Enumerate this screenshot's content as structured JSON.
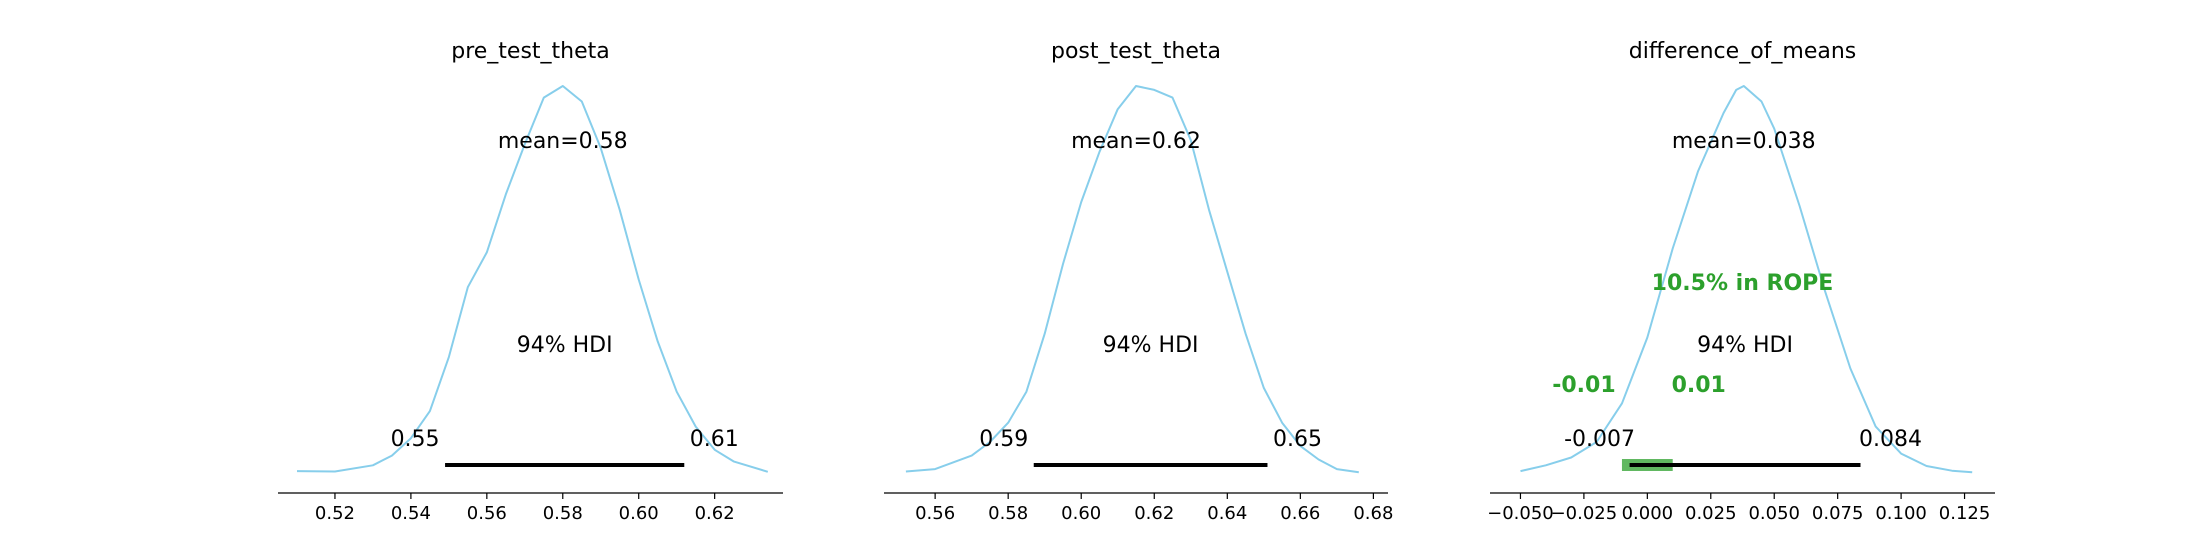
{
  "chart_data": [
    {
      "type": "density",
      "title": "pre_test_theta",
      "xlim": [
        0.505,
        0.638
      ],
      "xticks": [
        0.52,
        0.54,
        0.56,
        0.58,
        0.6,
        0.62
      ],
      "xtick_labels": [
        "0.52",
        "0.54",
        "0.56",
        "0.58",
        "0.60",
        "0.62"
      ],
      "mean_label": "mean=0.58",
      "hdi_label": "94% HDI",
      "hdi": [
        0.549,
        0.612
      ],
      "hdi_low_label": "0.55",
      "hdi_high_label": "0.61",
      "line_color": "#87ceeb",
      "density": {
        "x": [
          0.51,
          0.52,
          0.53,
          0.535,
          0.54,
          0.545,
          0.55,
          0.555,
          0.56,
          0.565,
          0.57,
          0.575,
          0.58,
          0.585,
          0.59,
          0.595,
          0.6,
          0.605,
          0.61,
          0.615,
          0.62,
          0.625,
          0.634
        ],
        "y": [
          0.005,
          0.004,
          0.02,
          0.045,
          0.09,
          0.16,
          0.3,
          0.48,
          0.57,
          0.72,
          0.85,
          0.97,
          1.0,
          0.96,
          0.84,
          0.68,
          0.5,
          0.34,
          0.21,
          0.12,
          0.06,
          0.03,
          0.003
        ]
      }
    },
    {
      "type": "density",
      "title": "post_test_theta",
      "xlim": [
        0.546,
        0.684
      ],
      "xticks": [
        0.56,
        0.58,
        0.6,
        0.62,
        0.64,
        0.66,
        0.68
      ],
      "xtick_labels": [
        "0.56",
        "0.58",
        "0.60",
        "0.62",
        "0.64",
        "0.66",
        "0.68"
      ],
      "mean_label": "mean=0.62",
      "hdi_label": "94% HDI",
      "hdi": [
        0.587,
        0.651
      ],
      "hdi_low_label": "0.59",
      "hdi_high_label": "0.65",
      "line_color": "#87ceeb",
      "density": {
        "x": [
          0.552,
          0.56,
          0.57,
          0.575,
          0.58,
          0.585,
          0.59,
          0.595,
          0.6,
          0.605,
          0.61,
          0.615,
          0.62,
          0.625,
          0.63,
          0.635,
          0.64,
          0.645,
          0.65,
          0.655,
          0.66,
          0.665,
          0.67,
          0.676
        ],
        "y": [
          0.004,
          0.01,
          0.045,
          0.08,
          0.13,
          0.21,
          0.36,
          0.54,
          0.7,
          0.83,
          0.94,
          1.0,
          0.99,
          0.97,
          0.86,
          0.68,
          0.52,
          0.36,
          0.22,
          0.13,
          0.07,
          0.035,
          0.01,
          0.002
        ]
      }
    },
    {
      "type": "density",
      "title": "difference_of_means",
      "xlim": [
        -0.062,
        0.137
      ],
      "xticks": [
        -0.05,
        -0.025,
        0.0,
        0.025,
        0.05,
        0.075,
        0.1,
        0.125
      ],
      "xtick_labels": [
        "−0.050",
        "−0.025",
        "0.000",
        "0.025",
        "0.050",
        "0.075",
        "0.100",
        "0.125"
      ],
      "mean_label": "mean=0.038",
      "hdi_label": "94% HDI",
      "hdi": [
        -0.007,
        0.084
      ],
      "hdi_low_label": "-0.007",
      "hdi_high_label": "0.084",
      "rope": [
        -0.01,
        0.01
      ],
      "rope_low_label": "-0.01",
      "rope_high_label": "0.01",
      "rope_label": "10.5% in ROPE",
      "rope_color": "#2ca02c",
      "line_color": "#87ceeb",
      "density": {
        "x": [
          -0.05,
          -0.04,
          -0.03,
          -0.02,
          -0.01,
          0.0,
          0.01,
          0.02,
          0.03,
          0.035,
          0.038,
          0.045,
          0.05,
          0.06,
          0.07,
          0.08,
          0.09,
          0.1,
          0.11,
          0.12,
          0.128
        ],
        "y": [
          0.005,
          0.02,
          0.04,
          0.08,
          0.18,
          0.35,
          0.58,
          0.78,
          0.93,
          0.99,
          1.0,
          0.96,
          0.89,
          0.69,
          0.47,
          0.27,
          0.12,
          0.05,
          0.018,
          0.006,
          0.002
        ]
      }
    }
  ]
}
